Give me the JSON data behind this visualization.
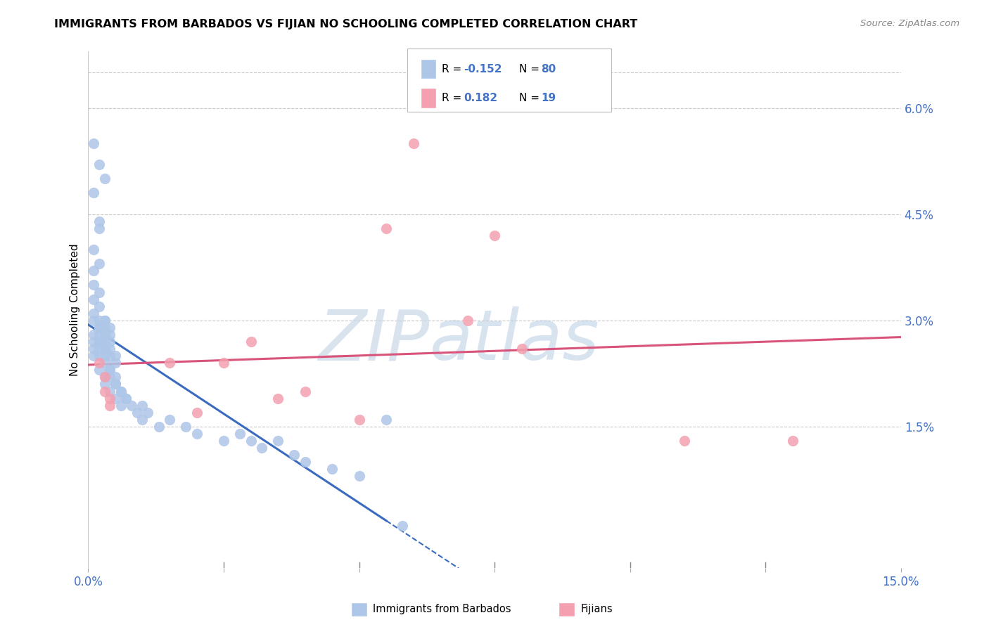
{
  "title": "IMMIGRANTS FROM BARBADOS VS FIJIAN NO SCHOOLING COMPLETED CORRELATION CHART",
  "source": "Source: ZipAtlas.com",
  "ylabel": "No Schooling Completed",
  "xlim": [
    0.0,
    0.15
  ],
  "ylim": [
    -0.005,
    0.068
  ],
  "plot_ylim": [
    0.0,
    0.065
  ],
  "barbados_R": "-0.152",
  "barbados_N": "80",
  "fijian_R": "0.182",
  "fijian_N": "19",
  "barbados_color": "#aec6e8",
  "fijian_color": "#f4a0b0",
  "barbados_line_color": "#3a6bbf",
  "fijian_line_color": "#d9547a",
  "watermark_zip": "ZIP",
  "watermark_atlas": "atlas",
  "barbados_x": [
    0.001,
    0.002,
    0.001,
    0.003,
    0.002,
    0.001,
    0.002,
    0.001,
    0.002,
    0.001,
    0.001,
    0.002,
    0.001,
    0.002,
    0.001,
    0.001,
    0.002,
    0.001,
    0.002,
    0.002,
    0.001,
    0.002,
    0.002,
    0.001,
    0.003,
    0.002,
    0.003,
    0.003,
    0.003,
    0.002,
    0.002,
    0.003,
    0.003,
    0.004,
    0.003,
    0.004,
    0.003,
    0.004,
    0.002,
    0.003,
    0.004,
    0.003,
    0.004,
    0.005,
    0.004,
    0.005,
    0.003,
    0.004,
    0.005,
    0.003,
    0.004,
    0.005,
    0.004,
    0.005,
    0.006,
    0.005,
    0.006,
    0.007,
    0.006,
    0.007,
    0.008,
    0.009,
    0.01,
    0.01,
    0.011,
    0.013,
    0.015,
    0.018,
    0.02,
    0.025,
    0.028,
    0.03,
    0.032,
    0.035,
    0.038,
    0.04,
    0.045,
    0.05,
    0.055,
    0.058
  ],
  "barbados_y": [
    0.055,
    0.052,
    0.048,
    0.05,
    0.044,
    0.04,
    0.043,
    0.037,
    0.038,
    0.035,
    0.033,
    0.034,
    0.031,
    0.032,
    0.03,
    0.028,
    0.029,
    0.027,
    0.03,
    0.029,
    0.026,
    0.028,
    0.027,
    0.025,
    0.03,
    0.026,
    0.028,
    0.029,
    0.03,
    0.027,
    0.025,
    0.028,
    0.027,
    0.029,
    0.026,
    0.028,
    0.025,
    0.027,
    0.023,
    0.026,
    0.025,
    0.024,
    0.026,
    0.025,
    0.023,
    0.024,
    0.022,
    0.023,
    0.022,
    0.021,
    0.022,
    0.021,
    0.02,
    0.021,
    0.02,
    0.019,
    0.02,
    0.019,
    0.018,
    0.019,
    0.018,
    0.017,
    0.018,
    0.016,
    0.017,
    0.015,
    0.016,
    0.015,
    0.014,
    0.013,
    0.014,
    0.013,
    0.012,
    0.013,
    0.011,
    0.01,
    0.009,
    0.008,
    0.016,
    0.001
  ],
  "fijian_x": [
    0.002,
    0.003,
    0.004,
    0.003,
    0.004,
    0.015,
    0.02,
    0.025,
    0.03,
    0.035,
    0.04,
    0.05,
    0.055,
    0.06,
    0.07,
    0.075,
    0.08,
    0.11,
    0.13
  ],
  "fijian_y": [
    0.024,
    0.022,
    0.018,
    0.02,
    0.019,
    0.024,
    0.017,
    0.024,
    0.027,
    0.019,
    0.02,
    0.016,
    0.043,
    0.055,
    0.03,
    0.042,
    0.026,
    0.013,
    0.013
  ]
}
